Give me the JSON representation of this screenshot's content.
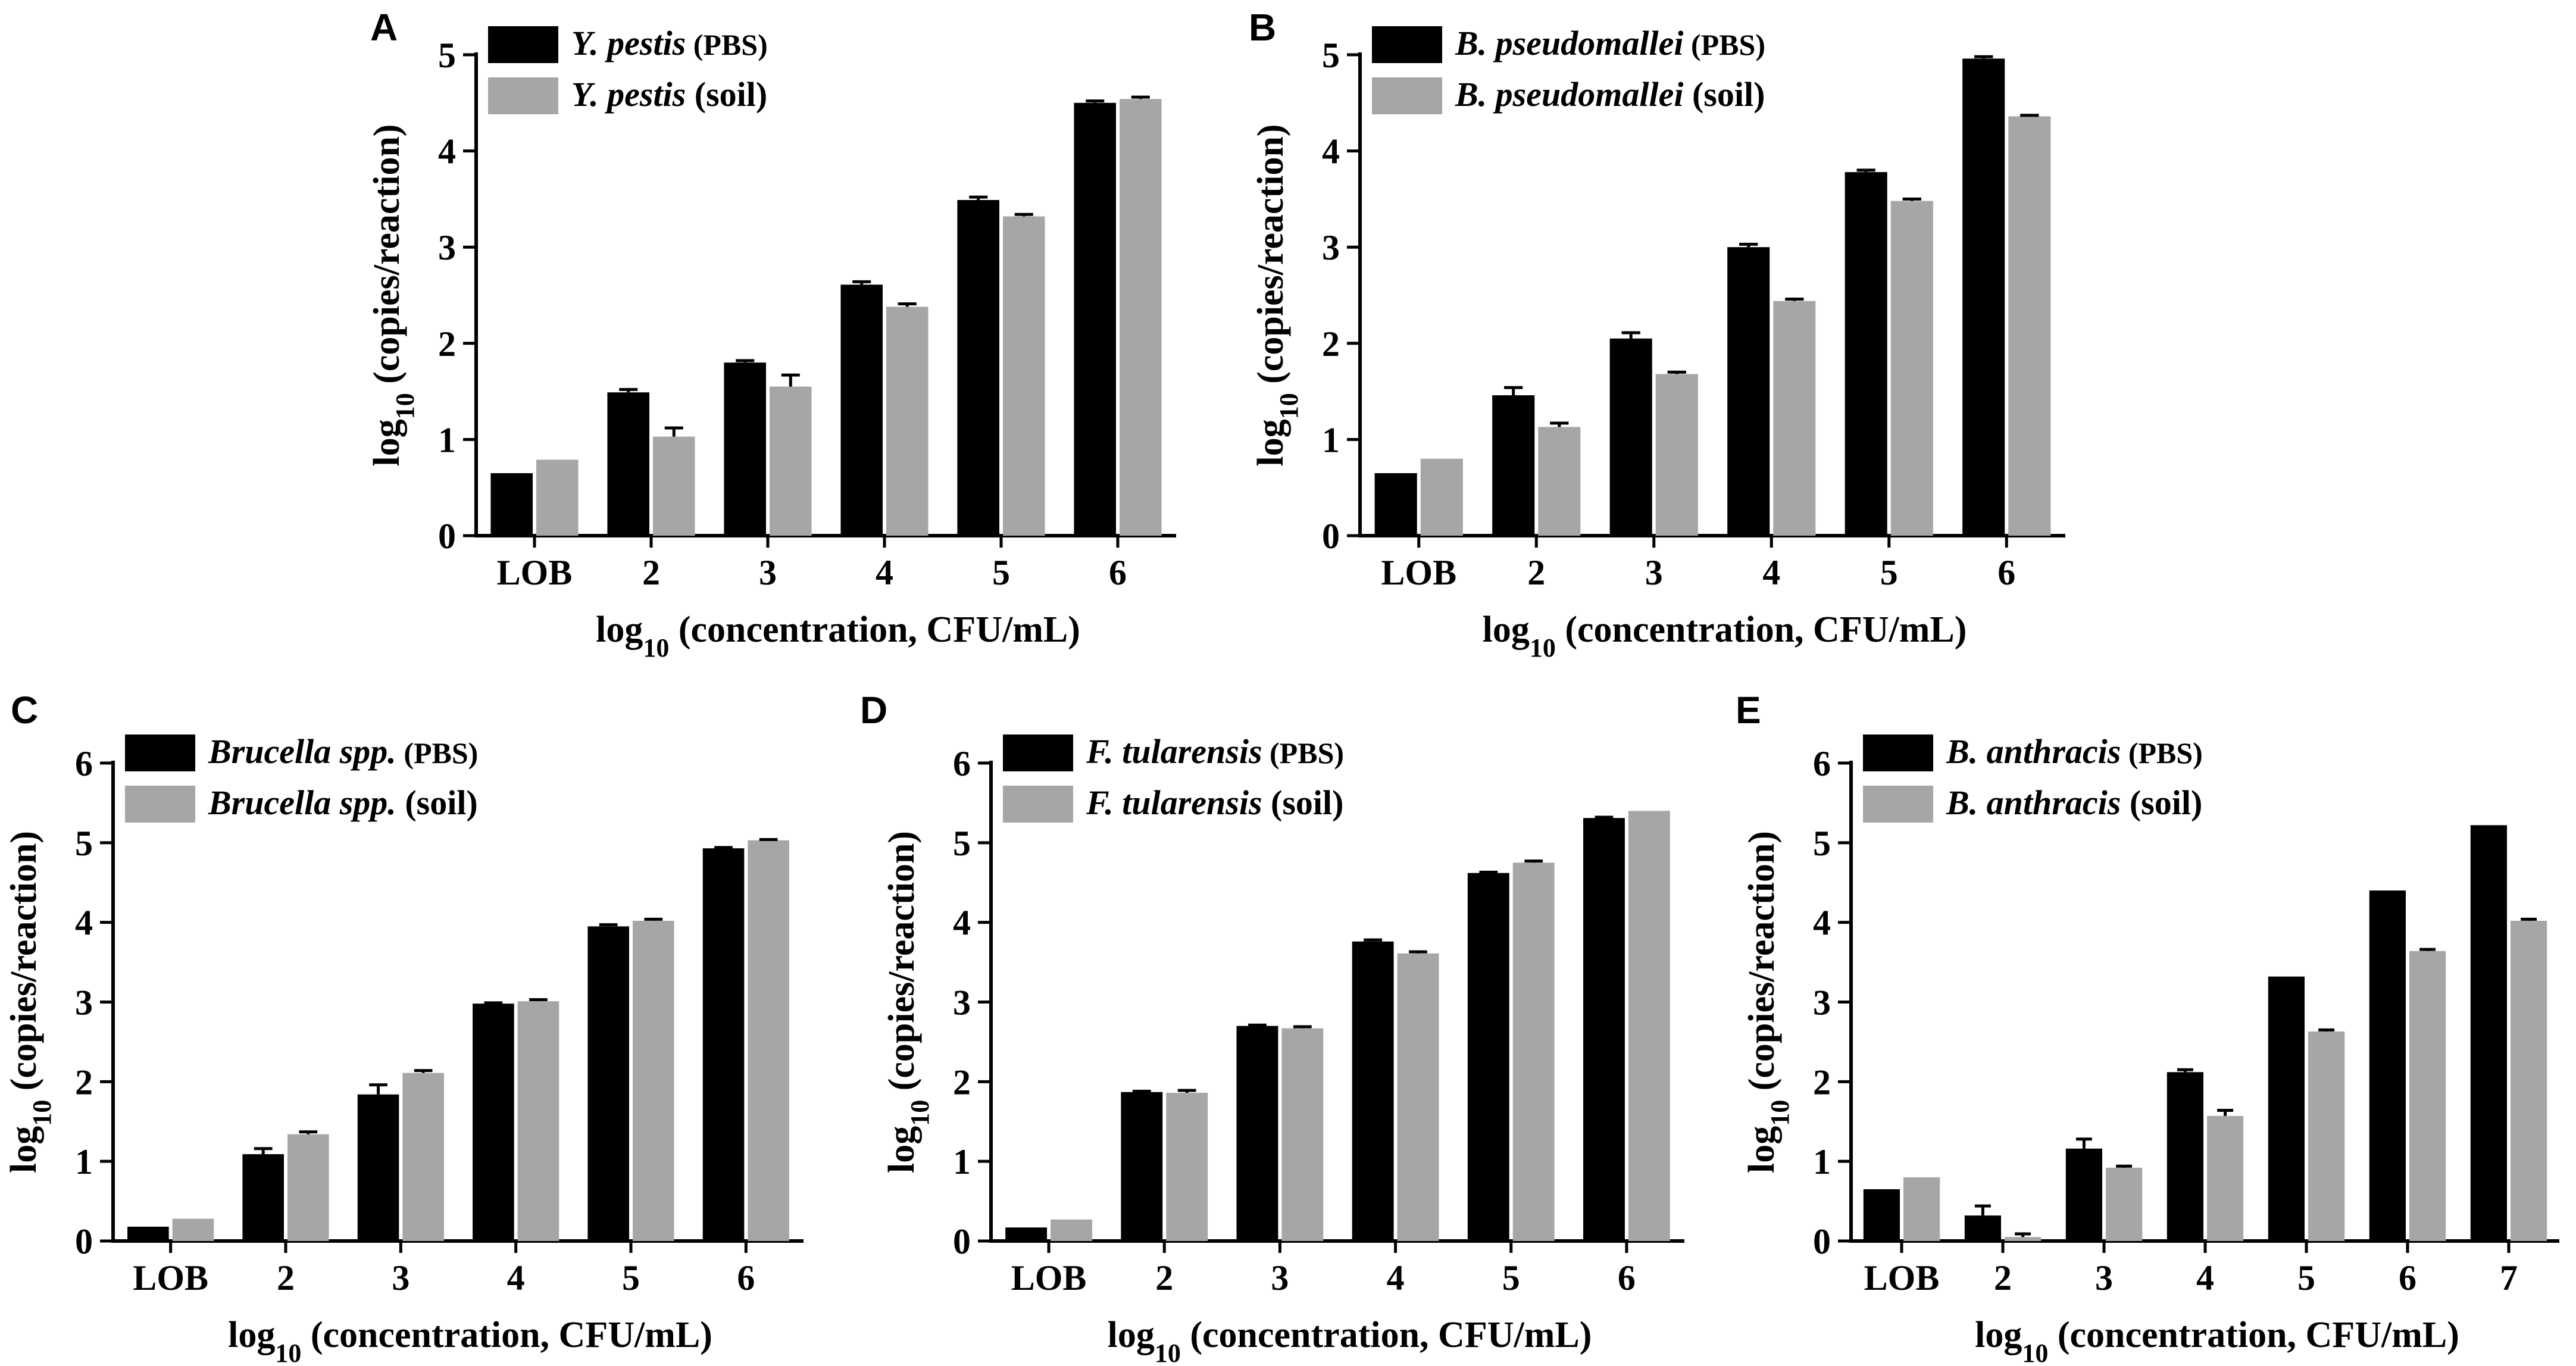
{
  "chart_data": [
    {
      "type": "bar",
      "panel": "A",
      "categories": [
        "LOB",
        "2",
        "3",
        "4",
        "5",
        "6"
      ],
      "series": [
        {
          "name": "Y. pestis (PBS)",
          "species": "Y. pestis",
          "matrix": "(PBS)",
          "color": "#000000",
          "values": [
            0.65,
            1.49,
            1.8,
            2.61,
            3.49,
            4.5
          ],
          "errors": [
            0.0,
            0.03,
            0.02,
            0.03,
            0.03,
            0.02
          ]
        },
        {
          "name": "Y. pestis (soil)",
          "species": "Y. pestis",
          "matrix": "(soil)",
          "color": "#a6a6a6",
          "values": [
            0.79,
            1.03,
            1.55,
            2.38,
            3.32,
            4.54
          ],
          "errors": [
            0.0,
            0.09,
            0.12,
            0.03,
            0.02,
            0.02
          ]
        }
      ],
      "xlabel_prefix": "log",
      "xlabel_sub": "10",
      "xlabel_rest": "(concentration, CFU/mL)",
      "ylabel_prefix": "log",
      "ylabel_sub": "10",
      "ylabel_rest": "(copies/reaction)",
      "ylim": [
        0,
        5
      ],
      "yticks": [
        "0",
        "1",
        "2",
        "3",
        "4",
        "5"
      ],
      "grid": false,
      "legend": "top-left"
    },
    {
      "type": "bar",
      "panel": "B",
      "categories": [
        "LOB",
        "2",
        "3",
        "4",
        "5",
        "6"
      ],
      "series": [
        {
          "name": "B. pseudomallei (PBS)",
          "species": "B. pseudomallei",
          "matrix": "(PBS)",
          "color": "#000000",
          "values": [
            0.65,
            1.46,
            2.05,
            3.0,
            3.78,
            4.96
          ],
          "errors": [
            0.0,
            0.08,
            0.06,
            0.03,
            0.02,
            0.02
          ]
        },
        {
          "name": "B. pseudomallei (soil)",
          "species": "B. pseudomallei",
          "matrix": "(soil)",
          "color": "#a6a6a6",
          "values": [
            0.8,
            1.13,
            1.68,
            2.44,
            3.48,
            4.36
          ],
          "errors": [
            0.0,
            0.04,
            0.02,
            0.02,
            0.02,
            0.01
          ]
        }
      ],
      "xlabel_prefix": "log",
      "xlabel_sub": "10",
      "xlabel_rest": "(concentration, CFU/mL)",
      "ylabel_prefix": "log",
      "ylabel_sub": "10",
      "ylabel_rest": "(copies/reaction)",
      "ylim": [
        0,
        5
      ],
      "yticks": [
        "0",
        "1",
        "2",
        "3",
        "4",
        "5"
      ],
      "grid": false,
      "legend": "top-left"
    },
    {
      "type": "bar",
      "panel": "C",
      "categories": [
        "LOB",
        "2",
        "3",
        "4",
        "5",
        "6"
      ],
      "series": [
        {
          "name": "Brucella spp. (PBS)",
          "species": "Brucella spp.",
          "matrix": "(PBS)",
          "color": "#000000",
          "values": [
            0.18,
            1.09,
            1.84,
            2.98,
            3.95,
            4.93
          ],
          "errors": [
            0.0,
            0.07,
            0.12,
            0.01,
            0.02,
            0.01
          ]
        },
        {
          "name": "Brucella spp. (soil)",
          "species": "Brucella spp.",
          "matrix": "(soil)",
          "color": "#a6a6a6",
          "values": [
            0.28,
            1.34,
            2.11,
            3.01,
            4.02,
            5.03
          ],
          "errors": [
            0.0,
            0.03,
            0.03,
            0.02,
            0.02,
            0.01
          ]
        }
      ],
      "xlabel_prefix": "log",
      "xlabel_sub": "10",
      "xlabel_rest": "(concentration, CFU/mL)",
      "ylabel_prefix": "log",
      "ylabel_sub": "10",
      "ylabel_rest": "(copies/reaction)",
      "ylim": [
        0,
        6
      ],
      "yticks": [
        "0",
        "1",
        "2",
        "3",
        "4",
        "5",
        "6"
      ],
      "grid": false,
      "legend": "top-left"
    },
    {
      "type": "bar",
      "panel": "D",
      "categories": [
        "LOB",
        "2",
        "3",
        "4",
        "5",
        "6"
      ],
      "series": [
        {
          "name": "F. tularensis (PBS)",
          "species": "F. tularensis",
          "matrix": "(PBS)",
          "color": "#000000",
          "values": [
            0.17,
            1.87,
            2.7,
            3.76,
            4.62,
            5.31
          ],
          "errors": [
            0.0,
            0.01,
            0.01,
            0.02,
            0.01,
            0.01
          ]
        },
        {
          "name": "F. tularensis (soil)",
          "species": "F. tularensis",
          "matrix": "(soil)",
          "color": "#a6a6a6",
          "values": [
            0.27,
            1.86,
            2.67,
            3.61,
            4.75,
            5.4
          ],
          "errors": [
            0.0,
            0.03,
            0.02,
            0.02,
            0.02,
            0.0
          ]
        }
      ],
      "xlabel_prefix": "log",
      "xlabel_sub": "10",
      "xlabel_rest": "(concentration, CFU/mL)",
      "ylabel_prefix": "log",
      "ylabel_sub": "10",
      "ylabel_rest": "(copies/reaction)",
      "ylim": [
        0,
        6
      ],
      "yticks": [
        "0",
        "1",
        "2",
        "3",
        "4",
        "5",
        "6"
      ],
      "grid": false,
      "legend": "top-left"
    },
    {
      "type": "bar",
      "panel": "E",
      "categories": [
        "LOB",
        "2",
        "3",
        "4",
        "5",
        "6",
        "7"
      ],
      "series": [
        {
          "name": "B. anthracis (PBS)",
          "species": "B. anthracis",
          "matrix": "(PBS)",
          "color": "#000000",
          "values": [
            0.65,
            0.32,
            1.16,
            2.12,
            3.32,
            4.4,
            5.22
          ],
          "errors": [
            0.0,
            0.12,
            0.12,
            0.03,
            0.0,
            0.0,
            0.0
          ]
        },
        {
          "name": "B. anthracis (soil)",
          "species": "B. anthracis",
          "matrix": "(soil)",
          "color": "#a6a6a6",
          "values": [
            0.8,
            0.05,
            0.92,
            1.57,
            2.63,
            3.64,
            4.02
          ],
          "errors": [
            0.0,
            0.04,
            0.02,
            0.07,
            0.02,
            0.02,
            0.02
          ]
        }
      ],
      "xlabel_prefix": "log",
      "xlabel_sub": "10",
      "xlabel_rest": "(concentration, CFU/mL)",
      "ylabel_prefix": "log",
      "ylabel_sub": "10",
      "ylabel_rest": "(copies/reaction)",
      "ylim": [
        0,
        6
      ],
      "yticks": [
        "0",
        "1",
        "2",
        "3",
        "4",
        "5",
        "6"
      ],
      "grid": false,
      "legend": "top-left"
    }
  ]
}
